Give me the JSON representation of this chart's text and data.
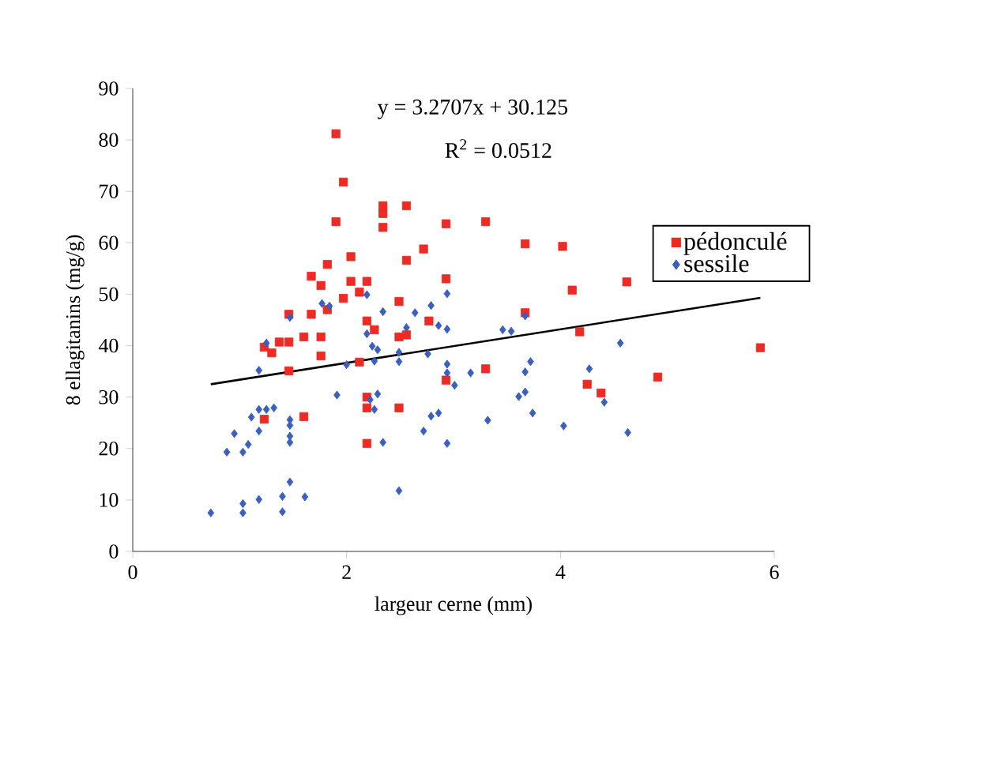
{
  "chart_data": {
    "type": "scatter",
    "xlabel": "largeur cerne (mm)",
    "ylabel": "8 ellagitanins (mg/g)",
    "xlim": [
      0,
      6
    ],
    "xticks": [
      0,
      2,
      4,
      6
    ],
    "ylim": [
      0,
      90
    ],
    "yticks": [
      0,
      10,
      20,
      30,
      40,
      50,
      60,
      70,
      80,
      90
    ],
    "grid": false,
    "legend": "top right",
    "annotations": [
      "y = 3.2707x + 30.125",
      "R$^{2}$ = 0.0512"
    ],
    "series": [
      {
        "name": "pédonculé",
        "color": "#ee2a24",
        "marker": "square",
        "x": [
          1.9,
          1.97,
          1.9,
          2.34,
          2.34,
          2.34,
          2.56,
          2.93,
          3.3,
          3.67,
          4.02,
          2.72,
          2.56,
          2.04,
          1.82,
          1.67,
          1.76,
          2.04,
          2.19,
          2.12,
          1.97,
          2.49,
          2.93,
          4.11,
          4.62,
          1.82,
          1.67,
          1.46,
          3.67,
          2.19,
          2.26,
          2.77,
          1.76,
          1.6,
          2.49,
          2.56,
          4.18,
          1.37,
          1.46,
          1.23,
          1.3,
          1.76,
          2.12,
          1.46,
          3.3,
          2.93,
          4.91,
          5.87,
          4.25,
          4.38,
          2.19,
          2.19,
          2.49,
          1.6,
          1.23,
          2.19
        ],
        "values": [
          81.2,
          71.8,
          64.1,
          67.2,
          65.7,
          63.0,
          67.2,
          63.7,
          64.1,
          59.8,
          59.3,
          58.8,
          56.6,
          57.3,
          55.8,
          53.5,
          51.7,
          52.5,
          52.5,
          50.4,
          49.2,
          48.6,
          53.0,
          50.8,
          52.4,
          47.0,
          46.1,
          46.1,
          46.4,
          44.8,
          43.1,
          44.8,
          41.7,
          41.7,
          41.7,
          42.1,
          42.7,
          40.7,
          40.7,
          39.7,
          38.6,
          38.0,
          36.8,
          35.1,
          35.5,
          33.3,
          33.9,
          39.6,
          32.5,
          30.8,
          30.0,
          27.9,
          27.9,
          26.2,
          25.7,
          21.0
        ]
      },
      {
        "name": "sessile",
        "color": "#3a5fc0",
        "marker": "diamond",
        "x": [
          0.73,
          1.03,
          1.03,
          1.18,
          1.4,
          1.4,
          1.47,
          1.61,
          2.49,
          0.88,
          0.95,
          1.03,
          1.08,
          1.18,
          1.11,
          1.18,
          1.25,
          1.32,
          1.47,
          1.47,
          1.47,
          1.47,
          1.18,
          1.25,
          1.47,
          1.77,
          1.84,
          1.91,
          2.0,
          2.19,
          2.19,
          2.24,
          2.29,
          2.26,
          2.22,
          2.29,
          2.26,
          2.34,
          2.34,
          2.49,
          2.49,
          2.56,
          2.64,
          2.79,
          2.76,
          2.72,
          2.79,
          2.86,
          2.86,
          2.94,
          2.94,
          2.94,
          2.94,
          3.01,
          2.94,
          3.16,
          3.46,
          3.54,
          3.67,
          3.67,
          3.72,
          3.61,
          3.67,
          3.74,
          3.32,
          4.03,
          4.27,
          4.41,
          4.56,
          4.63
        ],
        "values": [
          7.5,
          7.5,
          9.3,
          10.1,
          7.7,
          10.7,
          13.5,
          10.6,
          11.8,
          19.3,
          22.9,
          19.3,
          20.8,
          23.4,
          26.1,
          27.6,
          27.6,
          27.9,
          25.6,
          24.5,
          22.4,
          21.2,
          35.2,
          40.5,
          45.5,
          48.2,
          47.7,
          30.4,
          36.3,
          49.9,
          42.3,
          39.9,
          39.2,
          37.0,
          29.5,
          30.6,
          27.6,
          21.2,
          46.6,
          38.7,
          36.9,
          43.5,
          46.4,
          47.8,
          38.4,
          23.4,
          26.3,
          26.9,
          43.9,
          43.2,
          50.1,
          36.4,
          34.7,
          32.3,
          21.0,
          34.7,
          43.1,
          42.8,
          45.8,
          34.9,
          36.9,
          30.1,
          31.0,
          26.9,
          25.5,
          24.4,
          35.5,
          29.0,
          40.5,
          23.1
        ]
      },
      {
        "type": "line",
        "color": "#000000",
        "marker": "none",
        "line_style": "solid",
        "x": [
          0.73,
          5.87
        ],
        "values": [
          32.5,
          49.3
        ]
      }
    ]
  }
}
